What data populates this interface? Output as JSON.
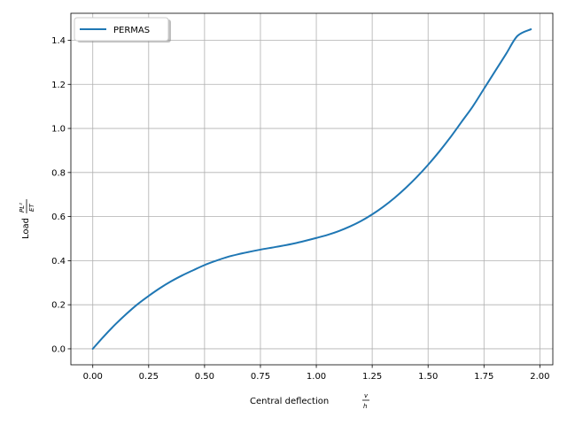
{
  "chart_data": {
    "type": "line",
    "title": "",
    "xlabel": "Central deflection",
    "xlabel_fraction": {
      "num": "v",
      "den": "h"
    },
    "ylabel": "Load",
    "ylabel_fraction": {
      "num": "PL²",
      "den": "ET"
    },
    "xlim": [
      -0.098,
      2.058
    ],
    "ylim": [
      -0.0725,
      1.5225
    ],
    "xticks": [
      0.0,
      0.25,
      0.5,
      0.75,
      1.0,
      1.25,
      1.5,
      1.75,
      2.0
    ],
    "xtick_labels": [
      "0.00",
      "0.25",
      "0.50",
      "0.75",
      "1.00",
      "1.25",
      "1.50",
      "1.75",
      "2.00"
    ],
    "yticks": [
      0.0,
      0.2,
      0.4,
      0.6,
      0.8,
      1.0,
      1.2,
      1.4
    ],
    "ytick_labels": [
      "0.0",
      "0.2",
      "0.4",
      "0.6",
      "0.8",
      "1.0",
      "1.2",
      "1.4"
    ],
    "grid": true,
    "legend_position": "top-left",
    "series": [
      {
        "name": "PERMAS",
        "color": "#1f77b4",
        "x": [
          0.0,
          0.05,
          0.1,
          0.15,
          0.2,
          0.25,
          0.3,
          0.35,
          0.4,
          0.45,
          0.5,
          0.55,
          0.6,
          0.65,
          0.7,
          0.75,
          0.8,
          0.85,
          0.9,
          0.95,
          1.0,
          1.05,
          1.1,
          1.15,
          1.2,
          1.25,
          1.3,
          1.35,
          1.4,
          1.45,
          1.5,
          1.55,
          1.6,
          1.65,
          1.7,
          1.75,
          1.8,
          1.85,
          1.9,
          1.96
        ],
        "y": [
          0.0,
          0.057,
          0.11,
          0.158,
          0.202,
          0.24,
          0.275,
          0.306,
          0.333,
          0.357,
          0.38,
          0.399,
          0.416,
          0.429,
          0.44,
          0.45,
          0.459,
          0.468,
          0.478,
          0.49,
          0.503,
          0.517,
          0.534,
          0.555,
          0.58,
          0.61,
          0.645,
          0.685,
          0.73,
          0.78,
          0.835,
          0.895,
          0.96,
          1.03,
          1.1,
          1.18,
          1.26,
          1.34,
          1.42,
          1.45
        ]
      }
    ]
  },
  "colors": {
    "line": "#1f77b4",
    "grid": "#b0b0b0",
    "axes": "#000000"
  }
}
